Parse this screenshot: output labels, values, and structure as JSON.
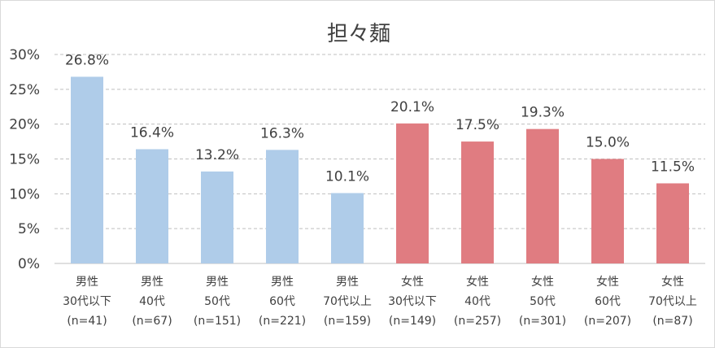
{
  "chart_data": {
    "type": "bar",
    "title": "担々麺",
    "ylim": [
      0,
      30
    ],
    "yticks": [
      "0%",
      "5%",
      "10%",
      "15%",
      "20%",
      "25%",
      "30%"
    ],
    "grid": true,
    "categories": [
      [
        "男性",
        "30代以下",
        "(n=41)"
      ],
      [
        "男性",
        "40代",
        "(n=67)"
      ],
      [
        "男性",
        "50代",
        "(n=151)"
      ],
      [
        "男性",
        "60代",
        "(n=221)"
      ],
      [
        "男性",
        "70代以上",
        "(n=159)"
      ],
      [
        "女性",
        "30代以下",
        "(n=149)"
      ],
      [
        "女性",
        "40代",
        "(n=257)"
      ],
      [
        "女性",
        "50代",
        "(n=301)"
      ],
      [
        "女性",
        "60代",
        "(n=207)"
      ],
      [
        "女性",
        "70代以上",
        "(n=87)"
      ]
    ],
    "values": [
      26.8,
      16.4,
      13.2,
      16.3,
      10.1,
      20.1,
      17.5,
      19.3,
      15.0,
      11.5
    ],
    "labels": [
      "26.8%",
      "16.4%",
      "13.2%",
      "16.3%",
      "10.1%",
      "20.1%",
      "17.5%",
      "19.3%",
      "15.0%",
      "11.5%"
    ],
    "colors": [
      "#afcce9",
      "#afcce9",
      "#afcce9",
      "#afcce9",
      "#afcce9",
      "#e07c81",
      "#e07c81",
      "#e07c81",
      "#e07c81",
      "#e07c81"
    ]
  }
}
